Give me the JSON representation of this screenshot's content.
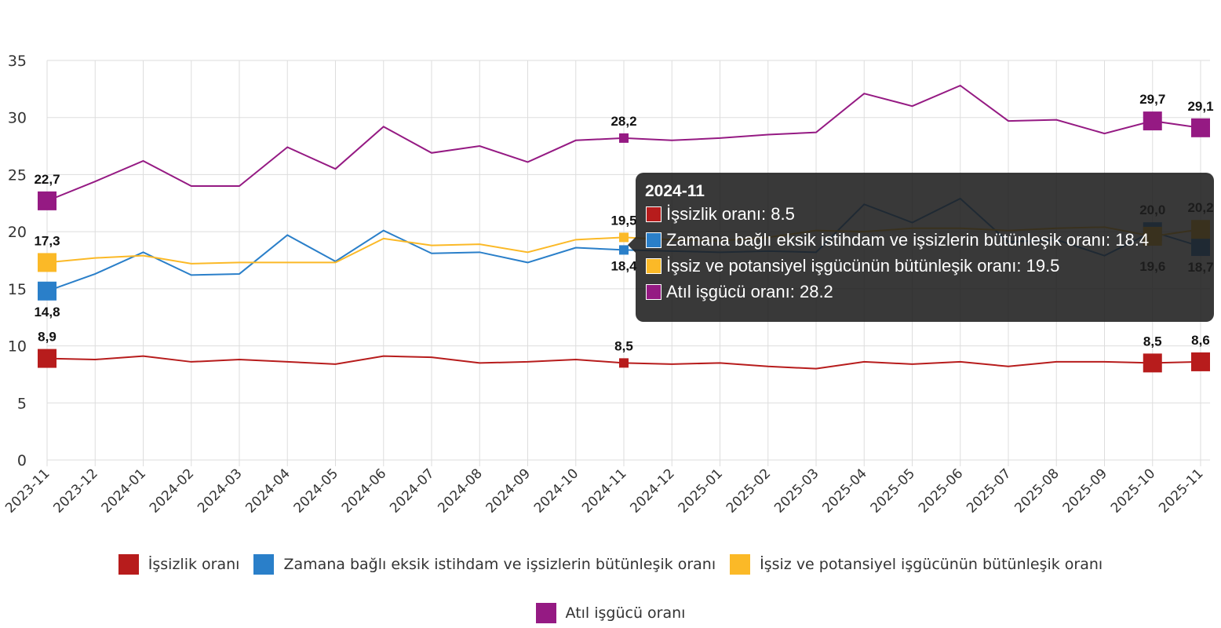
{
  "chart_data": {
    "type": "line",
    "x": [
      "2023-11",
      "2023-12",
      "2024-01",
      "2024-02",
      "2024-03",
      "2024-04",
      "2024-05",
      "2024-06",
      "2024-07",
      "2024-08",
      "2024-09",
      "2024-10",
      "2024-11",
      "2024-12",
      "2025-01",
      "2025-02",
      "2025-03",
      "2025-04",
      "2025-05",
      "2025-06",
      "2025-07",
      "2025-08",
      "2025-09",
      "2025-10",
      "2025-11"
    ],
    "ylim": [
      0,
      35
    ],
    "yticks": [
      "0",
      "5",
      "10",
      "15",
      "20",
      "25",
      "30",
      "35"
    ],
    "grid": true,
    "legend_position": "bottom",
    "series": [
      {
        "name": "İşsizlik oranı",
        "color": "#b71c1c",
        "values": [
          8.9,
          8.8,
          9.1,
          8.6,
          8.8,
          8.6,
          8.4,
          9.1,
          9.0,
          8.5,
          8.6,
          8.8,
          8.5,
          8.4,
          8.5,
          8.2,
          8.0,
          8.6,
          8.4,
          8.6,
          8.2,
          8.6,
          8.6,
          8.5,
          8.6
        ]
      },
      {
        "name": "Zamana bağlı eksik istihdam ve işsizlerin bütünleşik oranı",
        "color": "#2a7fc9",
        "values": [
          14.8,
          16.3,
          18.2,
          16.2,
          16.3,
          19.7,
          17.4,
          20.1,
          18.1,
          18.2,
          17.3,
          18.6,
          18.4,
          18.3,
          18.2,
          18.3,
          18.2,
          22.4,
          20.8,
          22.9,
          19.1,
          19.3,
          17.9,
          20.0,
          18.7
        ]
      },
      {
        "name": "İşsiz ve potansiyel işgücünün bütünleşik oranı",
        "color": "#fbb927",
        "values": [
          17.3,
          17.7,
          17.9,
          17.2,
          17.3,
          17.3,
          17.3,
          19.4,
          18.8,
          18.9,
          18.2,
          19.3,
          19.5,
          19.3,
          19.2,
          19.5,
          20.1,
          20.0,
          20.3,
          20.3,
          20.1,
          20.3,
          20.4,
          19.6,
          20.2
        ]
      },
      {
        "name": "Atıl işgücü oranı",
        "color": "#951a83",
        "values": [
          22.7,
          24.4,
          26.2,
          24.0,
          24.0,
          27.4,
          25.5,
          29.2,
          26.9,
          27.5,
          26.1,
          28.0,
          28.2,
          28.0,
          28.2,
          28.5,
          28.7,
          32.1,
          31.0,
          32.8,
          29.7,
          29.8,
          28.6,
          29.7,
          29.1
        ]
      }
    ],
    "data_labels": {
      "0": [
        "8,9",
        "14,8",
        "17,3",
        "22,7"
      ],
      "12": [
        "8,5",
        "18,4",
        "19,5",
        "28,2"
      ],
      "23": [
        "8,5",
        "20,0",
        "19,6",
        "29,7"
      ],
      "24": [
        "8,6",
        "18,7",
        "20,2",
        "29,1"
      ]
    }
  },
  "tooltip": {
    "title": "2024-11",
    "rows": [
      "İşsizlik oranı: 8.5",
      "Zamana bağlı eksik istihdam ve işsizlerin bütünleşik oranı: 18.4",
      "İşsiz ve potansiyel işgücünün bütünleşik oranı: 19.5",
      "Atıl işgücü oranı: 28.2"
    ]
  }
}
